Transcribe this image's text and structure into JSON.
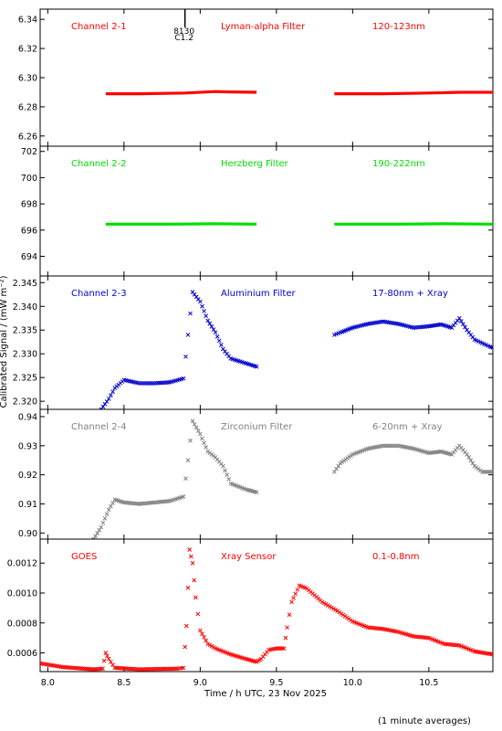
{
  "figure": {
    "ylabel": "Calibrated Signal / (mW m⁻²)",
    "xlabel": "Time / h UTC, 23 Nov 2025",
    "footnote": "(1 minute averages)",
    "x_ticks": [
      "8.0",
      "8.5",
      "9.0",
      "9.5",
      "10.0",
      "10.5"
    ],
    "x_range": [
      7.95,
      10.92
    ],
    "marker": {
      "x": 8.9,
      "labels": [
        "8130",
        "C1.2"
      ]
    }
  },
  "chart_data": [
    {
      "type": "scatter",
      "marker": "line",
      "color": "#ff0000",
      "labels": [
        "Channel 2-1",
        "Lyman-alpha Filter",
        "120-123nm"
      ],
      "ylim": [
        6.253,
        6.347
      ],
      "y_ticks": [
        6.26,
        6.28,
        6.3,
        6.32,
        6.34
      ],
      "y_tick_labels": [
        "6.26",
        "6.28",
        "6.30",
        "6.32",
        "6.34"
      ],
      "segments": [
        [
          [
            8.38,
            6.289
          ],
          [
            8.6,
            6.289
          ],
          [
            8.9,
            6.2895
          ],
          [
            9.1,
            6.2905
          ],
          [
            9.2,
            6.2902
          ],
          [
            9.37,
            6.29
          ]
        ],
        [
          [
            9.88,
            6.289
          ],
          [
            10.2,
            6.289
          ],
          [
            10.5,
            6.2895
          ],
          [
            10.7,
            6.29
          ],
          [
            10.92,
            6.29
          ]
        ]
      ]
    },
    {
      "type": "scatter",
      "marker": "line",
      "color": "#00dd00",
      "labels": [
        "Channel 2-2",
        "Herzberg Filter",
        "190-222nm"
      ],
      "ylim": [
        692.5,
        702.4
      ],
      "y_ticks": [
        694,
        696,
        698,
        700,
        702
      ],
      "y_tick_labels": [
        "694",
        "696",
        "698",
        "700",
        "702"
      ],
      "segments": [
        [
          [
            8.38,
            696.45
          ],
          [
            8.8,
            696.45
          ],
          [
            9.1,
            696.48
          ],
          [
            9.37,
            696.45
          ]
        ],
        [
          [
            9.88,
            696.45
          ],
          [
            10.3,
            696.45
          ],
          [
            10.6,
            696.48
          ],
          [
            10.92,
            696.45
          ]
        ]
      ]
    },
    {
      "type": "scatter",
      "marker": "x",
      "color": "#0000cc",
      "labels": [
        "Channel 2-3",
        "Aluminium Filter",
        "17-80nm + Xray"
      ],
      "ylim": [
        2.3183,
        2.3464
      ],
      "y_ticks": [
        2.32,
        2.325,
        2.33,
        2.335,
        2.34,
        2.345
      ],
      "y_tick_labels": [
        "2.320",
        "2.325",
        "2.330",
        "2.335",
        "2.340",
        "2.345"
      ],
      "segments": [
        [
          [
            8.35,
            2.3183
          ],
          [
            8.4,
            2.3205
          ],
          [
            8.44,
            2.3228
          ],
          [
            8.5,
            2.3245
          ],
          [
            8.6,
            2.3238
          ],
          [
            8.7,
            2.3238
          ],
          [
            8.8,
            2.324
          ],
          [
            8.89,
            2.3248
          ],
          [
            8.92,
            2.334
          ],
          [
            8.95,
            2.343
          ],
          [
            9.0,
            2.341
          ],
          [
            9.05,
            2.337
          ],
          [
            9.1,
            2.3345
          ],
          [
            9.15,
            2.331
          ],
          [
            9.2,
            2.329
          ],
          [
            9.3,
            2.328
          ],
          [
            9.37,
            2.3273
          ]
        ],
        [
          [
            9.88,
            2.334
          ],
          [
            9.92,
            2.3345
          ],
          [
            10.0,
            2.3355
          ],
          [
            10.1,
            2.3363
          ],
          [
            10.2,
            2.3368
          ],
          [
            10.3,
            2.3363
          ],
          [
            10.4,
            2.3355
          ],
          [
            10.5,
            2.3358
          ],
          [
            10.58,
            2.3362
          ],
          [
            10.65,
            2.3355
          ],
          [
            10.7,
            2.3375
          ],
          [
            10.75,
            2.335
          ],
          [
            10.8,
            2.333
          ],
          [
            10.9,
            2.3315
          ],
          [
            10.92,
            2.3313
          ]
        ]
      ]
    },
    {
      "type": "scatter",
      "marker": "x",
      "color": "#808080",
      "labels": [
        "Channel 2-4",
        "Zirconium Filter",
        "6-20nm + Xray"
      ],
      "ylim": [
        0.8979,
        0.9425
      ],
      "y_ticks": [
        0.9,
        0.91,
        0.92,
        0.93,
        0.94
      ],
      "y_tick_labels": [
        "0.90",
        "0.91",
        "0.92",
        "0.93",
        "0.94"
      ],
      "segments": [
        [
          [
            8.3,
            0.8979
          ],
          [
            8.35,
            0.902
          ],
          [
            8.4,
            0.908
          ],
          [
            8.44,
            0.9115
          ],
          [
            8.5,
            0.9105
          ],
          [
            8.6,
            0.91
          ],
          [
            8.7,
            0.9105
          ],
          [
            8.8,
            0.911
          ],
          [
            8.89,
            0.9125
          ],
          [
            8.92,
            0.925
          ],
          [
            8.95,
            0.9385
          ],
          [
            9.0,
            0.934
          ],
          [
            9.05,
            0.928
          ],
          [
            9.1,
            0.926
          ],
          [
            9.15,
            0.923
          ],
          [
            9.2,
            0.917
          ],
          [
            9.3,
            0.915
          ],
          [
            9.37,
            0.914
          ]
        ],
        [
          [
            9.88,
            0.921
          ],
          [
            9.92,
            0.924
          ],
          [
            10.0,
            0.927
          ],
          [
            10.1,
            0.929
          ],
          [
            10.2,
            0.93
          ],
          [
            10.3,
            0.93
          ],
          [
            10.4,
            0.929
          ],
          [
            10.5,
            0.9275
          ],
          [
            10.58,
            0.928
          ],
          [
            10.65,
            0.927
          ],
          [
            10.7,
            0.93
          ],
          [
            10.75,
            0.927
          ],
          [
            10.8,
            0.923
          ],
          [
            10.85,
            0.921
          ],
          [
            10.92,
            0.921
          ]
        ]
      ]
    },
    {
      "type": "scatter",
      "marker": "x",
      "color": "#ff0000",
      "labels": [
        "GOES",
        "Xray Sensor",
        "0.1-0.8nm"
      ],
      "ylim": [
        0.000475,
        0.00136
      ],
      "y_ticks": [
        0.0006,
        0.0008,
        0.001,
        0.0012
      ],
      "y_tick_labels": [
        "0.0006",
        "0.0008",
        "0.0010",
        "0.0012"
      ],
      "segments": [
        [
          [
            7.95,
            0.00053
          ],
          [
            8.1,
            0.000505
          ],
          [
            8.3,
            0.00049
          ],
          [
            8.36,
            0.000495
          ],
          [
            8.38,
            0.0006
          ],
          [
            8.4,
            0.00056
          ],
          [
            8.44,
            0.0005
          ],
          [
            8.6,
            0.00049
          ],
          [
            8.85,
            0.000495
          ],
          [
            8.89,
            0.0005
          ],
          [
            8.91,
            0.00078
          ],
          [
            8.93,
            0.00129
          ],
          [
            8.95,
            0.0012
          ],
          [
            8.97,
            0.00097
          ],
          [
            9.0,
            0.00075
          ],
          [
            9.05,
            0.00066
          ],
          [
            9.1,
            0.00063
          ],
          [
            9.2,
            0.00059
          ],
          [
            9.3,
            0.00056
          ],
          [
            9.37,
            0.00054
          ],
          [
            9.4,
            0.00056
          ],
          [
            9.45,
            0.00062
          ],
          [
            9.5,
            0.00063
          ],
          [
            9.55,
            0.00063
          ],
          [
            9.57,
            0.00077
          ],
          [
            9.6,
            0.00094
          ],
          [
            9.65,
            0.00105
          ],
          [
            9.7,
            0.00103
          ],
          [
            9.8,
            0.00094
          ],
          [
            9.9,
            0.00088
          ],
          [
            10.0,
            0.00081
          ],
          [
            10.1,
            0.00077
          ],
          [
            10.2,
            0.00076
          ],
          [
            10.3,
            0.00074
          ],
          [
            10.4,
            0.00071
          ],
          [
            10.5,
            0.0007
          ],
          [
            10.6,
            0.00066
          ],
          [
            10.7,
            0.00065
          ],
          [
            10.8,
            0.00061
          ],
          [
            10.92,
            0.00059
          ]
        ]
      ]
    }
  ]
}
